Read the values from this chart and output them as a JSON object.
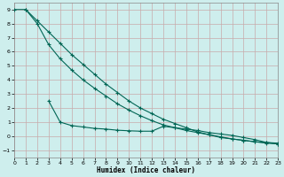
{
  "xlabel": "Humidex (Indice chaleur)",
  "bg_color": "#ceeeed",
  "grid_color": "#c8aaaa",
  "line_color": "#006655",
  "xlim": [
    0,
    23
  ],
  "ylim": [
    -1.5,
    9.5
  ],
  "ytick_vals": [
    -1,
    0,
    1,
    2,
    3,
    4,
    5,
    6,
    7,
    8,
    9
  ],
  "xtick_vals": [
    0,
    1,
    2,
    3,
    4,
    5,
    6,
    7,
    8,
    9,
    10,
    11,
    12,
    13,
    14,
    15,
    16,
    17,
    18,
    19,
    20,
    21,
    22,
    23
  ],
  "line1_x": [
    0,
    1,
    2,
    3,
    4,
    5,
    6,
    7,
    8,
    9,
    10,
    11,
    12,
    13,
    14,
    15,
    16,
    17,
    18,
    19,
    20,
    21,
    22,
    23
  ],
  "line1_y": [
    9.0,
    9.0,
    8.2,
    7.4,
    6.6,
    5.8,
    5.1,
    4.4,
    3.7,
    3.1,
    2.5,
    2.0,
    1.6,
    1.2,
    0.9,
    0.6,
    0.3,
    0.1,
    -0.1,
    -0.2,
    -0.3,
    -0.4,
    -0.45,
    -0.5
  ],
  "line2_x": [
    1,
    2,
    3,
    4,
    5,
    6,
    7,
    8,
    9,
    10,
    11,
    12,
    13,
    14,
    15,
    16,
    17,
    18,
    19,
    20,
    21,
    22,
    23
  ],
  "line2_y": [
    9.0,
    8.0,
    6.5,
    5.5,
    4.7,
    4.0,
    3.4,
    2.85,
    2.3,
    1.85,
    1.45,
    1.1,
    0.8,
    0.6,
    0.4,
    0.25,
    0.1,
    -0.05,
    -0.2,
    -0.3,
    -0.4,
    -0.5,
    -0.55
  ],
  "line3_x": [
    3,
    4,
    5,
    6,
    7,
    8,
    9,
    10,
    11,
    12,
    13,
    14,
    15,
    16,
    17,
    18,
    19,
    20,
    21,
    22,
    23
  ],
  "line3_y": [
    2.5,
    1.0,
    0.75,
    0.65,
    0.55,
    0.5,
    0.42,
    0.38,
    0.35,
    0.35,
    0.7,
    0.6,
    0.5,
    0.4,
    0.25,
    0.15,
    0.05,
    -0.1,
    -0.25,
    -0.45,
    -0.55
  ]
}
